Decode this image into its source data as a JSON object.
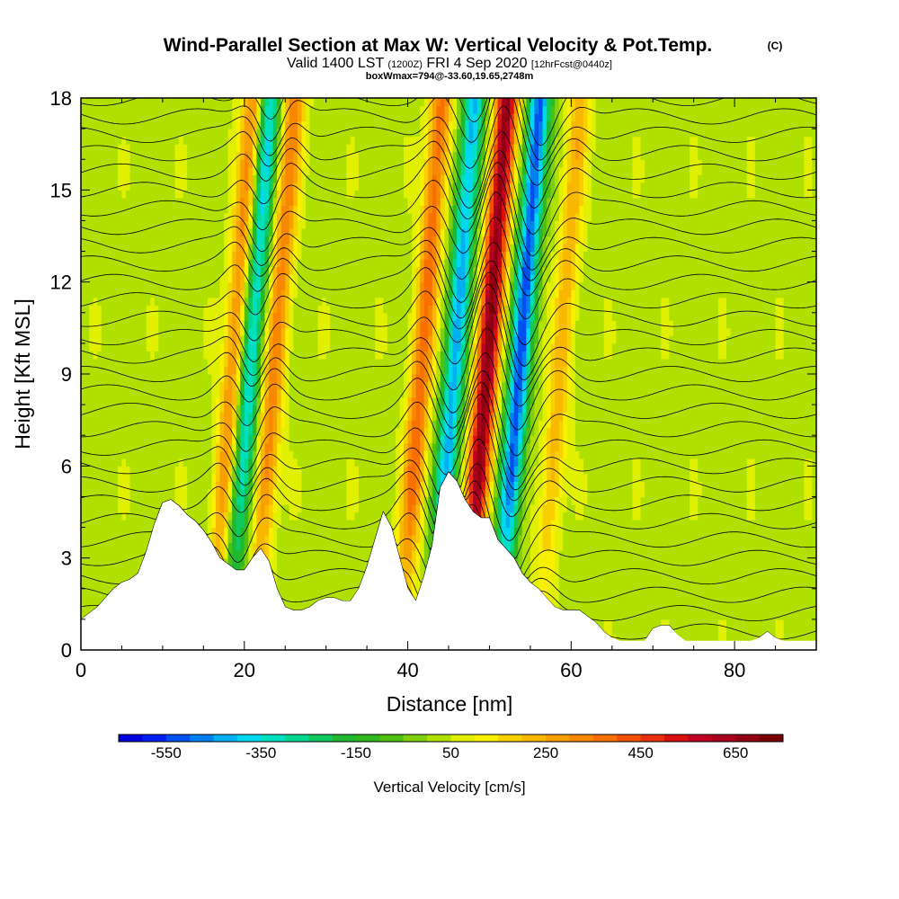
{
  "title": {
    "main": "Wind-Parallel Section at Max W: Vertical Velocity & Pot.Temp.",
    "copyright": "(C)",
    "valid_prefix": "Valid 1400 LST",
    "valid_utc": "(1200Z)",
    "valid_date": "FRI 4 Sep 2020",
    "forecast": "[12hrFcst@0440z]",
    "box_info": "boxWmax=794@-33.60,19.65,2748m"
  },
  "chart_data": {
    "type": "heatmap",
    "xlabel": "Distance [nm]",
    "ylabel": "Height [Kft MSL]",
    "xlim": [
      0,
      90
    ],
    "ylim": [
      0,
      18
    ],
    "xticks": [
      "0",
      "20",
      "40",
      "60",
      "80"
    ],
    "yticks": [
      "0",
      "3",
      "6",
      "9",
      "12",
      "15",
      "18"
    ],
    "colorbar": {
      "label": "Vertical Velocity [cm/s]",
      "tick_labels": [
        "-550",
        "-350",
        "-150",
        "50",
        "250",
        "450",
        "650"
      ],
      "min": -650,
      "max": 750,
      "step": 50,
      "colors": [
        "#0000dc",
        "#0020f0",
        "#0050f0",
        "#0080f0",
        "#00b0f0",
        "#00d8f0",
        "#00e0c0",
        "#00d890",
        "#10c860",
        "#20b830",
        "#30b820",
        "#50c010",
        "#80d010",
        "#b0e000",
        "#e0f000",
        "#f8f000",
        "#f8d000",
        "#f8b800",
        "#f8a000",
        "#f88800",
        "#f87000",
        "#f05000",
        "#e83010",
        "#d81010",
        "#c00020",
        "#a80020",
        "#900010",
        "#780000"
      ]
    },
    "updrafts": [
      {
        "x": 17.5,
        "w": 300
      },
      {
        "x": 22.5,
        "w": 300
      },
      {
        "x": 40.5,
        "w": 350
      },
      {
        "x": 48.5,
        "w": 650
      },
      {
        "x": 57.5,
        "w": 200
      }
    ],
    "downdrafts": [
      {
        "x": 19.5,
        "w": -400
      },
      {
        "x": 44.5,
        "w": -450
      },
      {
        "x": 52.5,
        "w": -550
      }
    ],
    "terrain_kft": [
      [
        0,
        1.0
      ],
      [
        1,
        1.2
      ],
      [
        2,
        1.4
      ],
      [
        3,
        1.7
      ],
      [
        4,
        2.0
      ],
      [
        5,
        2.2
      ],
      [
        6,
        2.3
      ],
      [
        7,
        2.5
      ],
      [
        8,
        3.2
      ],
      [
        9,
        4.1
      ],
      [
        10,
        4.8
      ],
      [
        11,
        4.9
      ],
      [
        12,
        4.7
      ],
      [
        13,
        4.4
      ],
      [
        14,
        4.2
      ],
      [
        15,
        3.9
      ],
      [
        16,
        3.5
      ],
      [
        17,
        3.0
      ],
      [
        18,
        2.8
      ],
      [
        19,
        2.6
      ],
      [
        20,
        2.6
      ],
      [
        21,
        3.0
      ],
      [
        22,
        3.3
      ],
      [
        23,
        2.9
      ],
      [
        24,
        2.0
      ],
      [
        25,
        1.4
      ],
      [
        26,
        1.3
      ],
      [
        27,
        1.3
      ],
      [
        28,
        1.4
      ],
      [
        29,
        1.6
      ],
      [
        30,
        1.7
      ],
      [
        31,
        1.7
      ],
      [
        32,
        1.6
      ],
      [
        33,
        1.6
      ],
      [
        34,
        2.0
      ],
      [
        35,
        2.7
      ],
      [
        36,
        3.6
      ],
      [
        37,
        4.5
      ],
      [
        38,
        4.0
      ],
      [
        39,
        3.0
      ],
      [
        40,
        2.0
      ],
      [
        41,
        1.6
      ],
      [
        42,
        2.4
      ],
      [
        43,
        3.4
      ],
      [
        44,
        5.3
      ],
      [
        45,
        5.8
      ],
      [
        46,
        5.5
      ],
      [
        47,
        4.9
      ],
      [
        48,
        4.5
      ],
      [
        49,
        4.3
      ],
      [
        50,
        4.3
      ],
      [
        51,
        3.6
      ],
      [
        52,
        3.3
      ],
      [
        53,
        3.0
      ],
      [
        54,
        2.5
      ],
      [
        55,
        2.2
      ],
      [
        56,
        2.0
      ],
      [
        57,
        1.7
      ],
      [
        58,
        1.4
      ],
      [
        59,
        1.3
      ],
      [
        60,
        1.3
      ],
      [
        61,
        1.3
      ],
      [
        62,
        1.1
      ],
      [
        63,
        0.9
      ],
      [
        64,
        0.6
      ],
      [
        65,
        0.4
      ],
      [
        66,
        0.3
      ],
      [
        67,
        0.3
      ],
      [
        68,
        0.3
      ],
      [
        69,
        0.3
      ],
      [
        70,
        0.7
      ],
      [
        71,
        0.8
      ],
      [
        72,
        0.8
      ],
      [
        73,
        0.5
      ],
      [
        74,
        0.3
      ],
      [
        75,
        0.3
      ],
      [
        76,
        0.3
      ],
      [
        77,
        0.3
      ],
      [
        78,
        0.3
      ],
      [
        79,
        0.3
      ],
      [
        80,
        0.3
      ],
      [
        81,
        0.3
      ],
      [
        82,
        0.3
      ],
      [
        83,
        0.4
      ],
      [
        84,
        0.6
      ],
      [
        85,
        0.4
      ],
      [
        86,
        0.3
      ],
      [
        87,
        0.3
      ],
      [
        88,
        0.3
      ],
      [
        89,
        0.3
      ],
      [
        90,
        0.3
      ]
    ],
    "isentrope_levels_kft": [
      0.6,
      1.2,
      1.8,
      2.4,
      3.0,
      3.6,
      4.2,
      4.8,
      5.4,
      6.0,
      6.6,
      7.2,
      7.8,
      8.4,
      9.0,
      9.6,
      10.2,
      10.8,
      11.4,
      12.0,
      12.6,
      13.2,
      13.8,
      14.4,
      15.0,
      15.6,
      16.2,
      16.8,
      17.4,
      18.0
    ]
  }
}
